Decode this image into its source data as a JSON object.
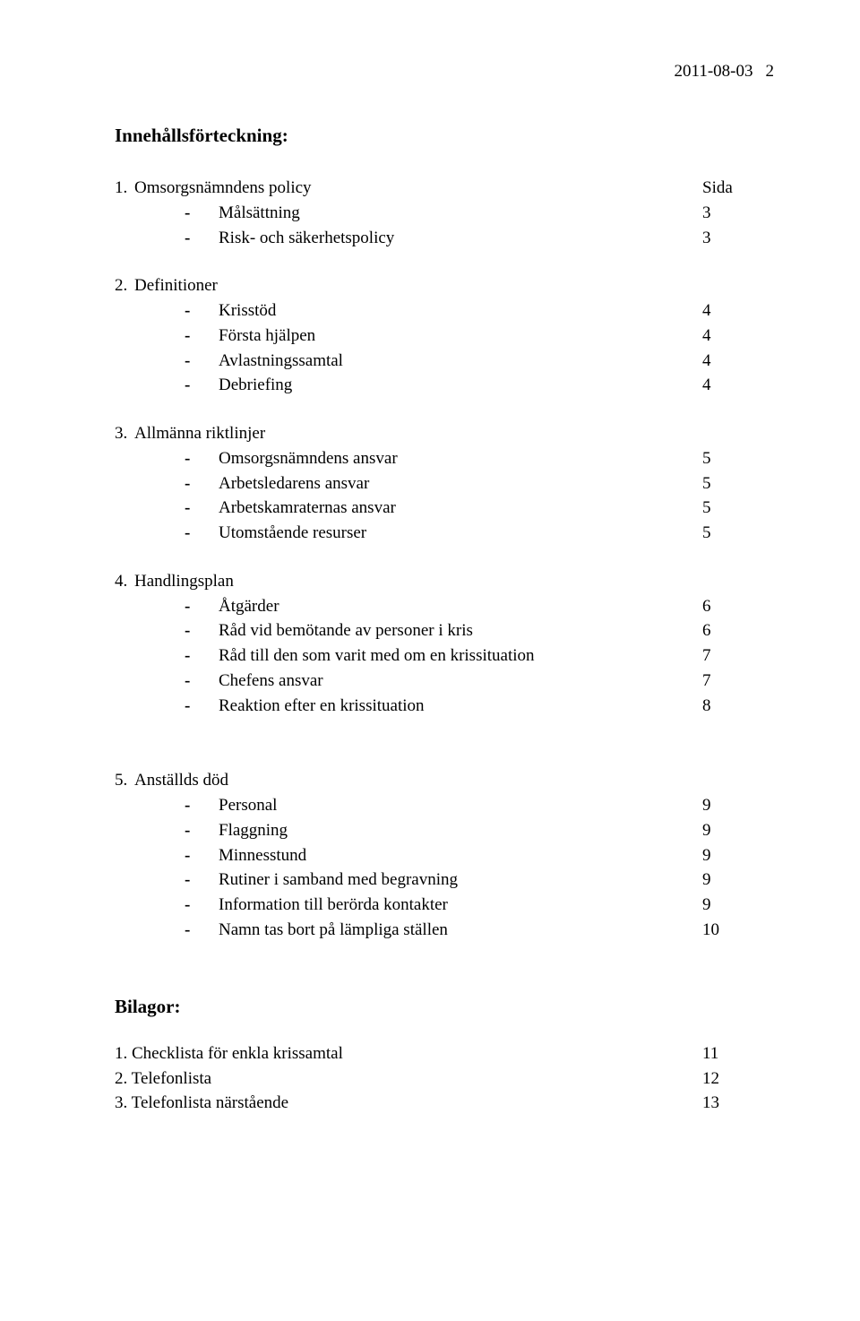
{
  "header": {
    "date": "2011-08-03",
    "page_number": "2"
  },
  "title": "Innehållsförteckning:",
  "page_col_label": "Sida",
  "dash": "-",
  "sections": [
    {
      "num": "1.",
      "heading": "Omsorgsnämndens policy",
      "show_sida": true,
      "items": [
        {
          "label": "Målsättning",
          "page": "3"
        },
        {
          "label": "Risk- och säkerhetspolicy",
          "page": "3"
        }
      ]
    },
    {
      "num": "2.",
      "heading": "Definitioner",
      "items": [
        {
          "label": "Krisstöd",
          "page": "4"
        },
        {
          "label": "Första hjälpen",
          "page": "4"
        },
        {
          "label": "Avlastningssamtal",
          "page": "4"
        },
        {
          "label": "Debriefing",
          "page": "4"
        }
      ]
    },
    {
      "num": "3.",
      "heading": "Allmänna riktlinjer",
      "items": [
        {
          "label": "Omsorgsnämndens ansvar",
          "page": "5"
        },
        {
          "label": "Arbetsledarens ansvar",
          "page": "5"
        },
        {
          "label": "Arbetskamraternas ansvar",
          "page": "5"
        },
        {
          "label": "Utomstående resurser",
          "page": "5"
        }
      ]
    },
    {
      "num": "4.",
      "heading": "Handlingsplan",
      "items": [
        {
          "label": "Åtgärder",
          "page": "6"
        },
        {
          "label": "Råd vid bemötande av personer i kris",
          "page": "6"
        },
        {
          "label": "Råd till den som varit med om en krissituation",
          "page": "7"
        },
        {
          "label": "Chefens ansvar",
          "page": "7"
        },
        {
          "label": "Reaktion efter en krissituation",
          "page": "8"
        }
      ]
    },
    {
      "num": "5.",
      "heading": "Anställds död",
      "items": [
        {
          "label": "Personal",
          "page": "9"
        },
        {
          "label": "Flaggning",
          "page": "9"
        },
        {
          "label": "Minnesstund",
          "page": "9"
        },
        {
          "label": "Rutiner i samband med begravning",
          "page": "9"
        },
        {
          "label": "Information till berörda kontakter",
          "page": "9"
        },
        {
          "label": "Namn tas bort på lämpliga ställen",
          "page": "10"
        }
      ]
    }
  ],
  "bilagor": {
    "title": "Bilagor:",
    "items": [
      {
        "num": "1.",
        "label": "Checklista för enkla krissamtal",
        "page": "11"
      },
      {
        "num": "2.",
        "label": "Telefonlista",
        "page": "12"
      },
      {
        "num": "3.",
        "label": "Telefonlista närstående",
        "page": "13"
      }
    ]
  },
  "style": {
    "font_family": "Times New Roman",
    "body_fontsize_pt": 14,
    "title_fontsize_pt": 16,
    "text_color": "#000000",
    "background_color": "#ffffff"
  }
}
